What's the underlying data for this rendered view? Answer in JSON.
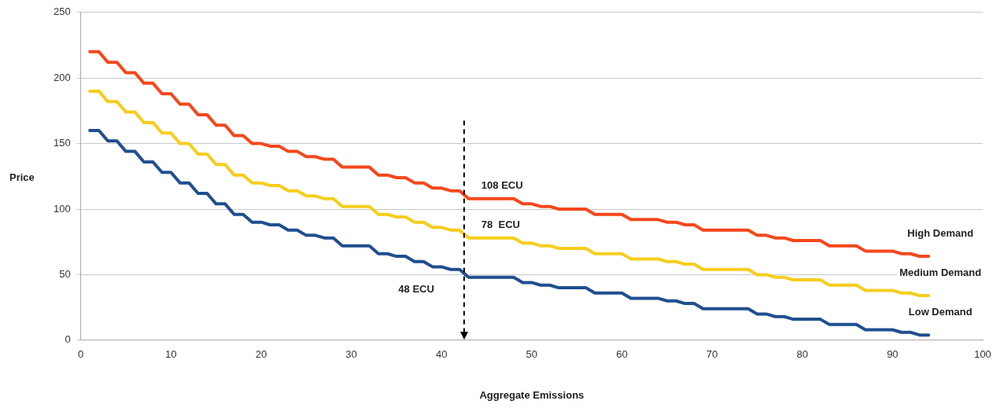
{
  "chart_data": {
    "type": "line",
    "xlabel": "Aggregate Emissions",
    "ylabel": "Price",
    "x": [
      1,
      2,
      3,
      4,
      5,
      6,
      7,
      8,
      9,
      10,
      11,
      12,
      13,
      14,
      15,
      16,
      17,
      18,
      19,
      20,
      21,
      22,
      23,
      24,
      25,
      26,
      27,
      28,
      29,
      32,
      33,
      34,
      35,
      36,
      37,
      38,
      39,
      40,
      41,
      42,
      43,
      48,
      49,
      50,
      51,
      52,
      53,
      56,
      57,
      60,
      61,
      64,
      65,
      66,
      67,
      68,
      69,
      74,
      75,
      76,
      77,
      78,
      79,
      82,
      83,
      86,
      87,
      90,
      91,
      92,
      93,
      94
    ],
    "series": [
      {
        "name": "High Demand",
        "color": "#f5471b",
        "values": [
          220,
          220,
          212,
          212,
          204,
          204,
          196,
          196,
          188,
          188,
          180,
          180,
          172,
          172,
          164,
          164,
          156,
          156,
          150,
          150,
          148,
          148,
          144,
          144,
          140,
          140,
          138,
          138,
          132,
          132,
          126,
          126,
          124,
          124,
          120,
          120,
          116,
          116,
          114,
          114,
          108,
          108,
          104,
          104,
          102,
          102,
          100,
          100,
          96,
          96,
          92,
          92,
          90,
          90,
          88,
          88,
          84,
          84,
          80,
          80,
          78,
          78,
          76,
          76,
          72,
          72,
          68,
          68,
          66,
          66,
          64,
          64
        ]
      },
      {
        "name": "Medium Demand",
        "color": "#f7cd1c",
        "values": [
          190,
          190,
          182,
          182,
          174,
          174,
          166,
          166,
          158,
          158,
          150,
          150,
          142,
          142,
          134,
          134,
          126,
          126,
          120,
          120,
          118,
          118,
          114,
          114,
          110,
          110,
          108,
          108,
          102,
          102,
          96,
          96,
          94,
          94,
          90,
          90,
          86,
          86,
          84,
          84,
          78,
          78,
          74,
          74,
          72,
          72,
          70,
          70,
          66,
          66,
          62,
          62,
          60,
          60,
          58,
          58,
          54,
          54,
          50,
          50,
          48,
          48,
          46,
          46,
          42,
          42,
          38,
          38,
          36,
          36,
          34,
          34
        ]
      },
      {
        "name": "Low Demand",
        "color": "#1f4f8f",
        "values": [
          160,
          160,
          152,
          152,
          144,
          144,
          136,
          136,
          128,
          128,
          120,
          120,
          112,
          112,
          104,
          104,
          96,
          96,
          90,
          90,
          88,
          88,
          84,
          84,
          80,
          80,
          78,
          78,
          72,
          72,
          66,
          66,
          64,
          64,
          60,
          60,
          56,
          56,
          54,
          54,
          48,
          48,
          44,
          44,
          42,
          42,
          40,
          40,
          36,
          36,
          32,
          32,
          30,
          30,
          28,
          28,
          24,
          24,
          20,
          20,
          18,
          18,
          16,
          16,
          12,
          12,
          8,
          8,
          6,
          6,
          4,
          4
        ]
      }
    ],
    "xlim": [
      0,
      100
    ],
    "xticks": [
      0,
      10,
      20,
      30,
      40,
      50,
      60,
      70,
      80,
      90,
      100
    ],
    "ylim": [
      0,
      250
    ],
    "yticks": [
      0,
      50,
      100,
      150,
      200,
      250
    ],
    "grid": "y",
    "legend": false,
    "marker": "none",
    "line_style": "solid",
    "ref_lines": [
      {
        "axis": "x",
        "value": 42.5,
        "line_style": "dashed",
        "color": "#000000"
      }
    ],
    "annotations": [
      "108 ECU",
      "78  ECU",
      "48 ECU"
    ]
  }
}
